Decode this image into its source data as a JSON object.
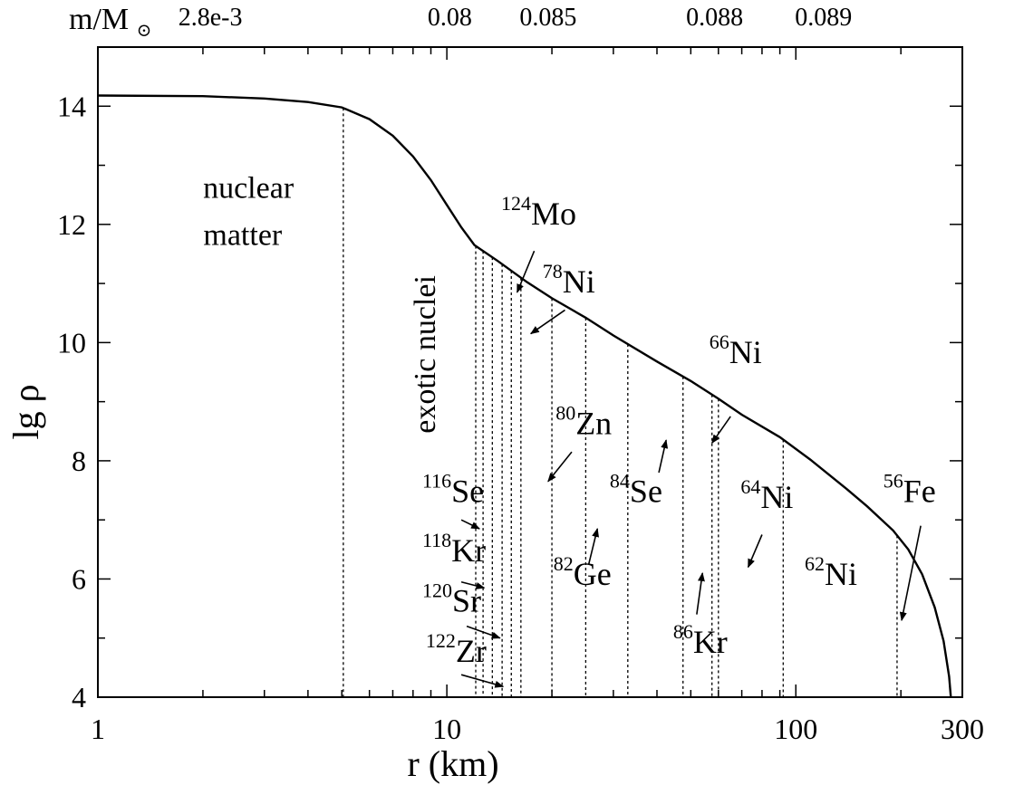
{
  "chart_data": {
    "type": "line",
    "xlabel": "r (km)",
    "ylabel": "lg ρ",
    "x_scale": "log",
    "xlim": [
      1,
      300
    ],
    "ylim": [
      4,
      15
    ],
    "x_ticks": [
      {
        "value": 1,
        "label": "1"
      },
      {
        "value": 10,
        "label": "10"
      },
      {
        "value": 100,
        "label": "100"
      },
      {
        "value": 300,
        "label": "300"
      }
    ],
    "y_ticks": [
      {
        "value": 4,
        "label": "4"
      },
      {
        "value": 6,
        "label": "6"
      },
      {
        "value": 8,
        "label": "8"
      },
      {
        "value": 10,
        "label": "10"
      },
      {
        "value": 12,
        "label": "12"
      },
      {
        "value": 14,
        "label": "14"
      }
    ],
    "top_axis": {
      "label": "m/M",
      "label_symbol": "⊙",
      "ticks": [
        {
          "r": 2.1,
          "label": "2.8e-3"
        },
        {
          "r": 10.2,
          "label": "0.08"
        },
        {
          "r": 19.5,
          "label": "0.085"
        },
        {
          "r": 58.5,
          "label": "0.088"
        },
        {
          "r": 120,
          "label": "0.089"
        }
      ]
    },
    "series": [
      {
        "points": [
          [
            1,
            14.18
          ],
          [
            2,
            14.17
          ],
          [
            3,
            14.13
          ],
          [
            4,
            14.07
          ],
          [
            5,
            13.98
          ],
          [
            6,
            13.78
          ],
          [
            7,
            13.5
          ],
          [
            8,
            13.15
          ],
          [
            9,
            12.75
          ],
          [
            10,
            12.33
          ],
          [
            11,
            11.95
          ],
          [
            12,
            11.65
          ],
          [
            14,
            11.38
          ],
          [
            17,
            11.02
          ],
          [
            20,
            10.75
          ],
          [
            25,
            10.42
          ],
          [
            30,
            10.12
          ],
          [
            40,
            9.68
          ],
          [
            50,
            9.35
          ],
          [
            60,
            9.05
          ],
          [
            70,
            8.78
          ],
          [
            90,
            8.4
          ],
          [
            110,
            8.02
          ],
          [
            140,
            7.52
          ],
          [
            160,
            7.23
          ],
          [
            190,
            6.82
          ],
          [
            210,
            6.5
          ],
          [
            230,
            6.08
          ],
          [
            250,
            5.52
          ],
          [
            265,
            4.95
          ],
          [
            275,
            4.35
          ],
          [
            278,
            4.0
          ]
        ]
      }
    ],
    "boundaries_r": [
      5.05,
      12.1,
      12.7,
      13.5,
      14.4,
      15.3,
      16.3,
      20,
      25,
      33,
      47.5,
      57.5,
      60,
      92,
      195
    ],
    "region_labels": [
      {
        "text": "nuclear",
        "x": 2.7,
        "y": 12.45
      },
      {
        "text": "matter",
        "x": 2.6,
        "y": 11.65
      }
    ],
    "rotated_label": {
      "text": "exotic nuclei",
      "x": 8.7,
      "y": 9.8
    },
    "nuclei": [
      {
        "mass": "124",
        "element": "Mo",
        "x": 14.3,
        "y": 12.0,
        "arrow": [
          [
            17.8,
            11.55
          ],
          [
            15.9,
            10.85
          ]
        ]
      },
      {
        "mass": "78",
        "element": "Ni",
        "x": 18.8,
        "y": 10.85,
        "arrow": [
          [
            21.8,
            10.55
          ],
          [
            17.4,
            10.15
          ]
        ]
      },
      {
        "mass": "66",
        "element": "Ni",
        "x": 56.5,
        "y": 9.65,
        "arrow": [
          [
            65.0,
            8.75
          ],
          [
            57.5,
            8.3
          ]
        ]
      },
      {
        "mass": "80",
        "element": "Zn",
        "x": 20.5,
        "y": 8.45,
        "arrow": [
          [
            22.8,
            8.15
          ],
          [
            19.5,
            7.65
          ]
        ]
      },
      {
        "mass": "84",
        "element": "Se",
        "x": 29.3,
        "y": 7.3,
        "arrow": [
          [
            40.5,
            7.8
          ],
          [
            42.5,
            8.35
          ]
        ]
      },
      {
        "mass": "116",
        "element": "Se",
        "x": 8.5,
        "y": 7.3,
        "arrow": [
          [
            11.0,
            7.0
          ],
          [
            12.4,
            6.85
          ]
        ]
      },
      {
        "mass": "64",
        "element": "Ni",
        "x": 69.5,
        "y": 7.2,
        "arrow": [
          [
            80.0,
            6.75
          ],
          [
            73.0,
            6.2
          ]
        ]
      },
      {
        "mass": "56",
        "element": "Fe",
        "x": 178,
        "y": 7.3,
        "arrow": [
          [
            228,
            6.9
          ],
          [
            201,
            5.3
          ]
        ]
      },
      {
        "mass": "118",
        "element": "Kr",
        "x": 8.5,
        "y": 6.3,
        "arrow": [
          [
            11.0,
            5.95
          ],
          [
            12.8,
            5.85
          ]
        ]
      },
      {
        "mass": "82",
        "element": "Ge",
        "x": 20.2,
        "y": 5.9,
        "arrow": [
          [
            25.5,
            6.25
          ],
          [
            27.0,
            6.85
          ]
        ]
      },
      {
        "mass": "62",
        "element": "Ni",
        "x": 106,
        "y": 5.9,
        "arrow": null
      },
      {
        "mass": "120",
        "element": "Sr",
        "x": 8.5,
        "y": 5.45,
        "arrow": [
          [
            11.4,
            5.2
          ],
          [
            14.2,
            5.0
          ]
        ]
      },
      {
        "mass": "86",
        "element": "Kr",
        "x": 44.5,
        "y": 4.75,
        "arrow": [
          [
            52.0,
            5.4
          ],
          [
            54.0,
            6.1
          ]
        ]
      },
      {
        "mass": "122",
        "element": "Zr",
        "x": 8.7,
        "y": 4.6,
        "arrow": [
          [
            11.0,
            4.38
          ],
          [
            14.5,
            4.18
          ]
        ]
      }
    ]
  }
}
